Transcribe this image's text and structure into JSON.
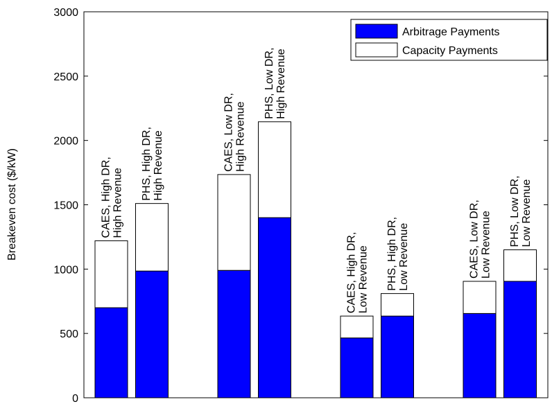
{
  "chart_data": {
    "type": "stacked_bar",
    "ylabel": "Breakeven cost ($/kW)",
    "categories": [
      "CAES, High DR, High Revenue",
      "PHS, High DR, High Revenue",
      "CAES, Low DR, High Revenue",
      "PHS, Low DR, High Revenue",
      "CAES, High DR, Low Revenue",
      "PHS, High DR, Low Revenue",
      "CAES, Low DR, Low Revenue",
      "PHS, Low DR, Low Revenue"
    ],
    "series": [
      {
        "name": "Arbitrage Payments",
        "color": "#0000ff",
        "values": [
          700,
          985,
          990,
          1400,
          465,
          635,
          655,
          905
        ]
      },
      {
        "name": "Capacity Payments",
        "color": "#ffffff",
        "values": [
          520,
          525,
          745,
          745,
          170,
          175,
          250,
          245
        ]
      }
    ],
    "ylim": [
      0,
      3000
    ],
    "yticks": [
      0,
      500,
      1000,
      1500,
      2000,
      2500,
      3000
    ],
    "legend": "upper right"
  }
}
